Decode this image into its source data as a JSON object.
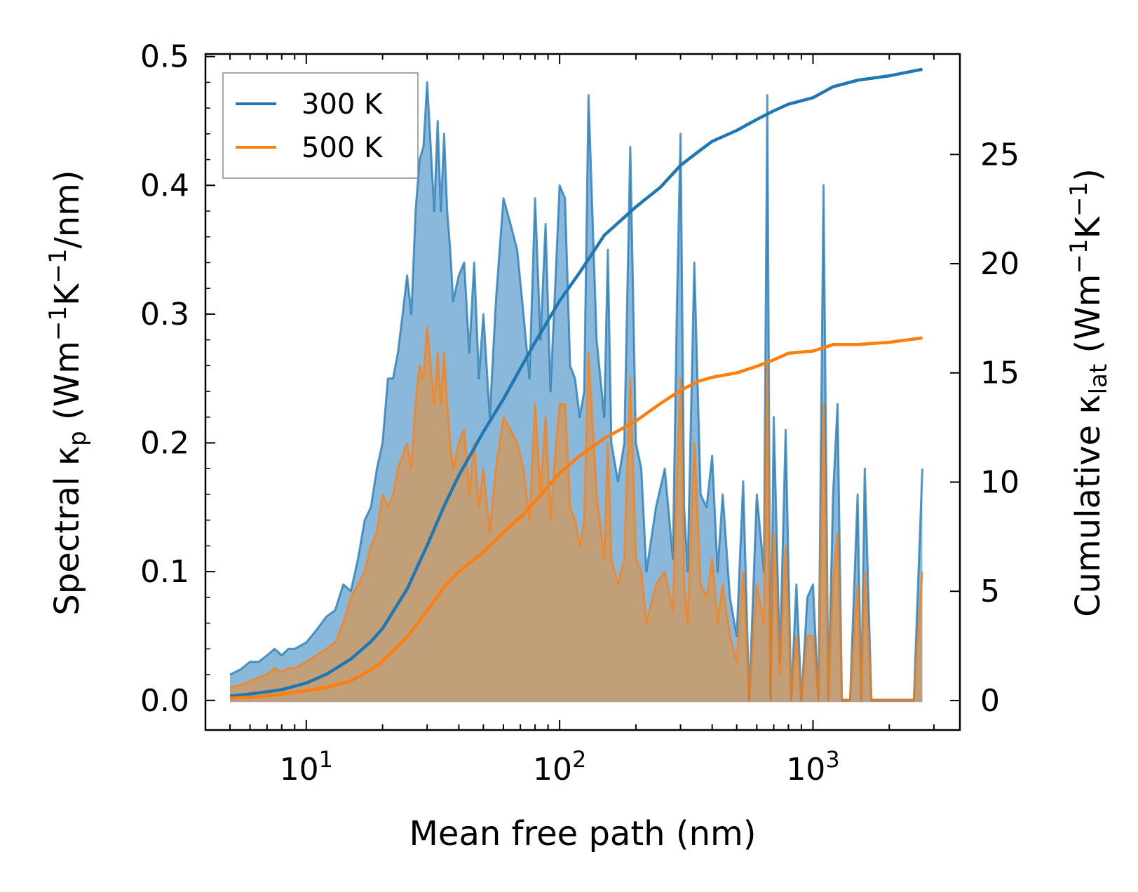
{
  "chart_data": {
    "type": "area",
    "xscale": "log",
    "xlabel": "Mean free path (nm)",
    "ylabel": "Spectral κ_p (Wm^-1K^-1/nm)",
    "ylabel_parts": {
      "main": "Spectral κ",
      "sub": "p",
      "open": " (Wm",
      "sup1": "−1",
      "k": "K",
      "sup2": "−1",
      "close": "/nm)"
    },
    "y2label": "Cumulative κ_lat (Wm^-1K^-1)",
    "y2label_parts": {
      "main": "Cumulative κ",
      "sub": "lat",
      "open": " (Wm",
      "sup1": "−1",
      "k": "K",
      "sup2": "−1",
      "close": ")"
    },
    "xlim": [
      4.0,
      3800
    ],
    "ylim": [
      -0.023,
      0.502
    ],
    "y2lim": [
      -1.35,
      29.6
    ],
    "xticks": [
      {
        "base": "10",
        "exp": "1",
        "value": 10
      },
      {
        "base": "10",
        "exp": "2",
        "value": 100
      },
      {
        "base": "10",
        "exp": "3",
        "value": 1000
      }
    ],
    "yticks": [
      {
        "label": "0.0",
        "value": 0.0
      },
      {
        "label": "0.1",
        "value": 0.1
      },
      {
        "label": "0.2",
        "value": 0.2
      },
      {
        "label": "0.3",
        "value": 0.3
      },
      {
        "label": "0.4",
        "value": 0.4
      },
      {
        "label": "0.5",
        "value": 0.5
      }
    ],
    "y2ticks": [
      {
        "label": "0",
        "value": 0
      },
      {
        "label": "5",
        "value": 5
      },
      {
        "label": "10",
        "value": 10
      },
      {
        "label": "15",
        "value": 15
      },
      {
        "label": "20",
        "value": 20
      },
      {
        "label": "25",
        "value": 25
      }
    ],
    "legend": {
      "position": "upper-left",
      "entries": [
        "300 K",
        "500 K"
      ]
    },
    "series": [
      {
        "name": "300 K",
        "color": "#1f77b4",
        "fill": "#8ab8db",
        "spectral": {
          "x": [
            5.0,
            5.5,
            6.0,
            6.5,
            7.0,
            7.5,
            8.0,
            8.5,
            9.0,
            10.0,
            11.0,
            12.0,
            13.0,
            14.0,
            15.0,
            16.0,
            17.0,
            18.0,
            19.0,
            20.0,
            21.0,
            22.0,
            23.0,
            24.0,
            25.0,
            26.0,
            27.0,
            28.0,
            29.0,
            30.0,
            31.0,
            32.0,
            33.0,
            34.0,
            35.0,
            36.0,
            37.0,
            38.0,
            40.0,
            42.0,
            44.0,
            46.0,
            48.0,
            50.0,
            53.0,
            56.0,
            60.0,
            64.0,
            68.0,
            72.0,
            76.0,
            80.0,
            84.0,
            88.0,
            92.0,
            96.0,
            100.0,
            105.0,
            110.0,
            115.0,
            120.0,
            125.0,
            130.0,
            140.0,
            150.0,
            155.0,
            160.0,
            170.0,
            180.0,
            190.0,
            200.0,
            210.0,
            220.0,
            240.0,
            260.0,
            280.0,
            290.0,
            300.0,
            310.0,
            320.0,
            340.0,
            360.0,
            380.0,
            400.0,
            420.0,
            440.0,
            470.0,
            500.0,
            530.0,
            560.0,
            600.0,
            640.0,
            660.0,
            680.0,
            700.0,
            740.0,
            780.0,
            820.0,
            860.0,
            900.0,
            950.0,
            1000.0,
            1050.0,
            1100.0,
            1150.0,
            1200.0,
            1250.0,
            1300.0,
            1350.0,
            1400.0,
            1500.0,
            1550.0,
            1600.0,
            1700.0,
            1900.0,
            2050.0,
            2100.0,
            2150.0,
            2300.0,
            2500.0,
            2700.0
          ],
          "y": [
            0.02,
            0.024,
            0.03,
            0.03,
            0.035,
            0.04,
            0.035,
            0.04,
            0.04,
            0.045,
            0.055,
            0.065,
            0.07,
            0.09,
            0.085,
            0.11,
            0.14,
            0.15,
            0.18,
            0.2,
            0.25,
            0.25,
            0.27,
            0.3,
            0.33,
            0.3,
            0.38,
            0.42,
            0.43,
            0.48,
            0.43,
            0.38,
            0.45,
            0.38,
            0.44,
            0.38,
            0.35,
            0.31,
            0.33,
            0.34,
            0.27,
            0.34,
            0.25,
            0.3,
            0.22,
            0.31,
            0.39,
            0.37,
            0.35,
            0.3,
            0.25,
            0.39,
            0.28,
            0.37,
            0.24,
            0.32,
            0.4,
            0.39,
            0.26,
            0.25,
            0.22,
            0.24,
            0.47,
            0.28,
            0.22,
            0.35,
            0.2,
            0.17,
            0.2,
            0.43,
            0.2,
            0.18,
            0.1,
            0.15,
            0.18,
            0.11,
            0.3,
            0.44,
            0.15,
            0.1,
            0.34,
            0.16,
            0.15,
            0.19,
            0.1,
            0.16,
            0.08,
            0.05,
            0.17,
            0.0,
            0.16,
            0.1,
            0.47,
            0.0,
            0.22,
            0.03,
            0.21,
            0.0,
            0.09,
            0.0,
            0.08,
            0.09,
            0.0,
            0.4,
            0.0,
            0.16,
            0.23,
            0.0,
            0.0,
            0.0,
            0.16,
            0.0,
            0.18,
            0.0,
            0.0,
            0.0,
            0.0,
            0.0,
            0.0,
            0.0,
            0.18
          ]
        },
        "cumulative": {
          "x": [
            5.0,
            6.0,
            7.0,
            8.0,
            10.0,
            12.0,
            15.0,
            18.0,
            20.0,
            25.0,
            30.0,
            35.0,
            40.0,
            50.0,
            60.0,
            70.0,
            80.0,
            90.0,
            100.0,
            120.0,
            150.0,
            200.0,
            250.0,
            300.0,
            350.0,
            400.0,
            500.0,
            600.0,
            700.0,
            800.0,
            1000.0,
            1200.0,
            1500.0,
            2000.0,
            2700.0
          ],
          "y": [
            0.2,
            0.3,
            0.4,
            0.5,
            0.8,
            1.2,
            1.9,
            2.7,
            3.3,
            5.1,
            7.1,
            8.9,
            10.3,
            12.3,
            13.8,
            15.2,
            16.4,
            17.4,
            18.3,
            19.6,
            21.3,
            22.6,
            23.5,
            24.5,
            25.1,
            25.6,
            26.1,
            26.6,
            27.0,
            27.3,
            27.6,
            28.1,
            28.4,
            28.6,
            28.9
          ]
        }
      },
      {
        "name": "500 K",
        "color": "#ff7f0e",
        "fill": "#c69c6e",
        "spectral": {
          "x": [
            5.0,
            5.5,
            6.0,
            6.5,
            7.0,
            7.5,
            8.0,
            8.5,
            9.0,
            10.0,
            11.0,
            12.0,
            13.0,
            14.0,
            15.0,
            16.0,
            17.0,
            18.0,
            19.0,
            20.0,
            21.0,
            22.0,
            23.0,
            24.0,
            25.0,
            26.0,
            27.0,
            28.0,
            29.0,
            30.0,
            31.0,
            32.0,
            33.0,
            34.0,
            35.0,
            36.0,
            37.0,
            38.0,
            40.0,
            42.0,
            44.0,
            46.0,
            48.0,
            50.0,
            53.0,
            56.0,
            60.0,
            64.0,
            68.0,
            72.0,
            76.0,
            80.0,
            84.0,
            88.0,
            92.0,
            96.0,
            100.0,
            105.0,
            110.0,
            115.0,
            120.0,
            125.0,
            130.0,
            140.0,
            150.0,
            155.0,
            160.0,
            170.0,
            180.0,
            190.0,
            200.0,
            210.0,
            220.0,
            240.0,
            260.0,
            280.0,
            290.0,
            300.0,
            310.0,
            320.0,
            340.0,
            360.0,
            380.0,
            400.0,
            420.0,
            440.0,
            470.0,
            500.0,
            530.0,
            560.0,
            600.0,
            640.0,
            660.0,
            680.0,
            700.0,
            740.0,
            780.0,
            820.0,
            860.0,
            900.0,
            950.0,
            1000.0,
            1050.0,
            1100.0,
            1150.0,
            1200.0,
            1250.0,
            1300.0,
            1350.0,
            1400.0,
            1500.0,
            1550.0,
            1600.0,
            1700.0,
            1900.0,
            2050.0,
            2100.0,
            2150.0,
            2300.0,
            2500.0,
            2700.0
          ],
          "y": [
            0.01,
            0.012,
            0.015,
            0.018,
            0.02,
            0.025,
            0.022,
            0.025,
            0.025,
            0.03,
            0.035,
            0.04,
            0.045,
            0.06,
            0.08,
            0.09,
            0.1,
            0.12,
            0.13,
            0.16,
            0.15,
            0.16,
            0.18,
            0.19,
            0.2,
            0.18,
            0.23,
            0.26,
            0.25,
            0.29,
            0.26,
            0.23,
            0.27,
            0.23,
            0.27,
            0.23,
            0.2,
            0.18,
            0.2,
            0.21,
            0.16,
            0.2,
            0.15,
            0.18,
            0.13,
            0.18,
            0.22,
            0.21,
            0.2,
            0.18,
            0.14,
            0.23,
            0.16,
            0.22,
            0.14,
            0.19,
            0.23,
            0.23,
            0.15,
            0.14,
            0.12,
            0.14,
            0.27,
            0.16,
            0.11,
            0.2,
            0.11,
            0.09,
            0.11,
            0.25,
            0.11,
            0.1,
            0.06,
            0.09,
            0.1,
            0.07,
            0.17,
            0.25,
            0.09,
            0.06,
            0.2,
            0.09,
            0.08,
            0.11,
            0.06,
            0.09,
            0.05,
            0.03,
            0.1,
            0.0,
            0.09,
            0.06,
            0.26,
            0.0,
            0.13,
            0.02,
            0.12,
            0.0,
            0.05,
            0.0,
            0.05,
            0.05,
            0.0,
            0.23,
            0.0,
            0.09,
            0.13,
            0.0,
            0.0,
            0.0,
            0.09,
            0.0,
            0.1,
            0.0,
            0.0,
            0.0,
            0.0,
            0.0,
            0.0,
            0.0,
            0.1
          ]
        },
        "cumulative": {
          "x": [
            5.0,
            6.0,
            7.0,
            8.0,
            10.0,
            12.0,
            15.0,
            18.0,
            20.0,
            25.0,
            30.0,
            35.0,
            40.0,
            50.0,
            60.0,
            70.0,
            80.0,
            90.0,
            100.0,
            120.0,
            150.0,
            200.0,
            250.0,
            300.0,
            350.0,
            400.0,
            500.0,
            600.0,
            700.0,
            800.0,
            1000.0,
            1200.0,
            1500.0,
            2000.0,
            2700.0
          ],
          "y": [
            0.1,
            0.15,
            0.2,
            0.3,
            0.45,
            0.6,
            0.9,
            1.4,
            1.8,
            2.9,
            4.1,
            5.2,
            5.9,
            6.8,
            7.7,
            8.4,
            9.1,
            9.8,
            10.4,
            11.2,
            12.0,
            12.8,
            13.6,
            14.2,
            14.6,
            14.8,
            15.0,
            15.3,
            15.6,
            15.9,
            16.0,
            16.3,
            16.3,
            16.4,
            16.6
          ]
        }
      }
    ]
  }
}
